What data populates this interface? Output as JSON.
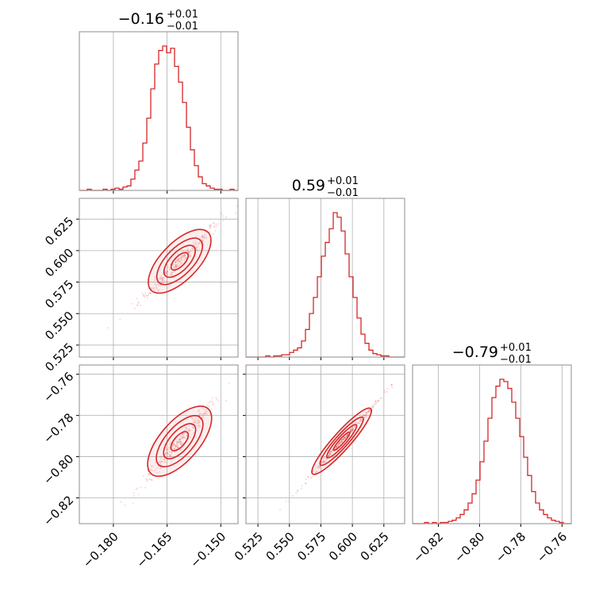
{
  "chart_data": {
    "type": "corner",
    "color": "#d62728",
    "grid": true,
    "parameters": [
      {
        "title": {
          "median": "−0.16",
          "plus": "+0.01",
          "minus": "−0.01"
        },
        "range": [
          -0.1895,
          -0.1452
        ]
      },
      {
        "title": {
          "median": "0.59",
          "plus": "+0.01",
          "minus": "−0.01"
        },
        "range": [
          0.5155,
          0.6415
        ]
      },
      {
        "title": {
          "median": "−0.79",
          "plus": "+0.01",
          "minus": "−0.01"
        },
        "range": [
          -0.8325,
          -0.7555
        ]
      }
    ],
    "ticks": {
      "p0": {
        "values": [
          -0.18,
          -0.165,
          -0.15
        ],
        "labels": [
          "−0.180",
          "−0.165",
          "−0.150"
        ]
      },
      "p1": {
        "values": [
          0.525,
          0.55,
          0.575,
          0.6,
          0.625
        ],
        "labels": [
          "0.525",
          "0.550",
          "0.575",
          "0.600",
          "0.625"
        ]
      },
      "p2_bottom": {
        "values": [
          -0.82,
          -0.8,
          -0.78,
          -0.76
        ],
        "labels": [
          "−0.82",
          "−0.80",
          "−0.78",
          "−0.76"
        ]
      },
      "p2_left": {
        "values": [
          -0.82,
          -0.8,
          -0.78,
          -0.76
        ],
        "labels": [
          "−0.82",
          "−0.80",
          "−0.78",
          "−0.76"
        ]
      }
    },
    "histograms": [
      {
        "param": 0,
        "edges_count": 40,
        "counts": [
          0,
          0,
          1,
          0,
          0,
          0,
          1,
          0,
          1,
          2,
          1,
          3,
          4,
          10,
          18,
          26,
          42,
          64,
          90,
          112,
          124,
          128,
          122,
          126,
          110,
          96,
          78,
          56,
          36,
          22,
          12,
          6,
          4,
          2,
          1,
          1,
          0,
          0,
          1,
          0
        ]
      },
      {
        "param": 1,
        "edges_count": 40,
        "counts": [
          0,
          0,
          0,
          0,
          0,
          1,
          0,
          1,
          1,
          2,
          2,
          4,
          6,
          8,
          14,
          24,
          38,
          52,
          70,
          88,
          100,
          112,
          126,
          122,
          110,
          90,
          70,
          52,
          34,
          20,
          12,
          6,
          3,
          2,
          1,
          1,
          0,
          0,
          0,
          0
        ]
      },
      {
        "param": 2,
        "edges_count": 40,
        "counts": [
          0,
          0,
          0,
          1,
          0,
          1,
          0,
          1,
          1,
          2,
          3,
          5,
          8,
          12,
          18,
          26,
          38,
          54,
          72,
          92,
          110,
          120,
          126,
          124,
          118,
          106,
          92,
          76,
          58,
          42,
          28,
          18,
          12,
          8,
          5,
          3,
          2,
          1,
          0,
          0
        ]
      }
    ],
    "pairs": [
      {
        "x_param": 0,
        "y_param": 1,
        "correlation": "strong positive",
        "center": [
          -0.1615,
          0.5915
        ],
        "sigma": [
          0.0036,
          0.0105
        ]
      },
      {
        "x_param": 0,
        "y_param": 2,
        "correlation": "strong positive",
        "center": [
          -0.1615,
          -0.7925
        ],
        "sigma": [
          0.0036,
          0.0072
        ]
      },
      {
        "x_param": 1,
        "y_param": 2,
        "correlation": "very strong positive",
        "center": [
          0.5915,
          -0.7925
        ],
        "sigma": [
          0.0105,
          0.0072
        ]
      }
    ]
  }
}
